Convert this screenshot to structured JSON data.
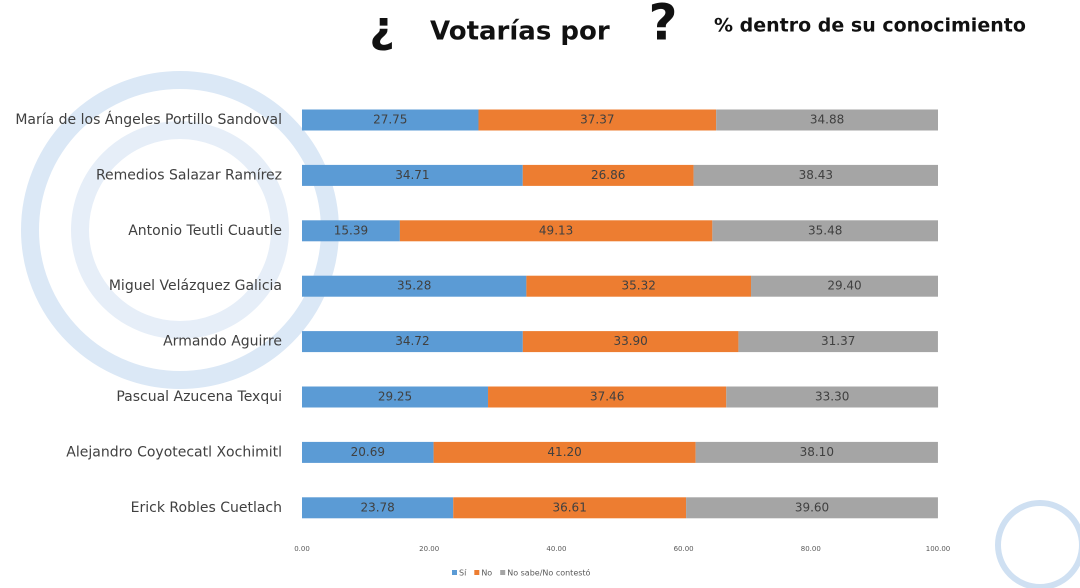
{
  "chart_data": {
    "type": "stacked-bar-horizontal",
    "title_open": "¿",
    "title": "Votarías por",
    "title_close": "?",
    "subtitle": "% dentro de su conocimiento",
    "categories": [
      "María de los Ángeles Portillo Sandoval",
      "Remedios Salazar Ramírez",
      "Antonio Teutli Cuautle",
      "Miguel Velázquez Galicia",
      "Armando Aguirre",
      "Pascual Azucena Texqui",
      "Alejandro Coyotecatl Xochimitl",
      "Erick Robles Cuetlach"
    ],
    "series": [
      {
        "name": "Sí",
        "color": "#5b9bd5",
        "values": [
          27.75,
          34.71,
          15.39,
          35.28,
          34.72,
          29.25,
          20.69,
          23.78
        ],
        "value_labels": [
          "27.75",
          "34.71",
          "15.39",
          "35.28",
          "34.72",
          "29.25",
          "20.69",
          "23.78"
        ]
      },
      {
        "name": "No",
        "color": "#ed7d31",
        "values": [
          37.37,
          26.86,
          49.13,
          35.32,
          33.9,
          37.46,
          41.2,
          36.61
        ],
        "value_labels": [
          "37.37",
          "26.86",
          "49.13",
          "35.32",
          "33.90",
          "37.46",
          "41.20",
          "36.61"
        ]
      },
      {
        "name": "No sabe/No contestó",
        "color": "#a5a5a5",
        "values": [
          34.88,
          38.43,
          35.48,
          29.4,
          31.37,
          33.3,
          38.1,
          39.6
        ],
        "value_labels": [
          "34.88",
          "38.43",
          "35.48",
          "29.40",
          "31.37",
          "33.30",
          "38.10",
          "39.60"
        ]
      }
    ],
    "xlim": [
      0,
      100
    ],
    "xticks": [
      {
        "value": 0,
        "label": "0.00"
      },
      {
        "value": 20,
        "label": "20.00"
      },
      {
        "value": 40,
        "label": "40.00"
      },
      {
        "value": 60,
        "label": "60.00"
      },
      {
        "value": 80,
        "label": "80.00"
      },
      {
        "value": 100,
        "label": "100.00"
      }
    ]
  }
}
